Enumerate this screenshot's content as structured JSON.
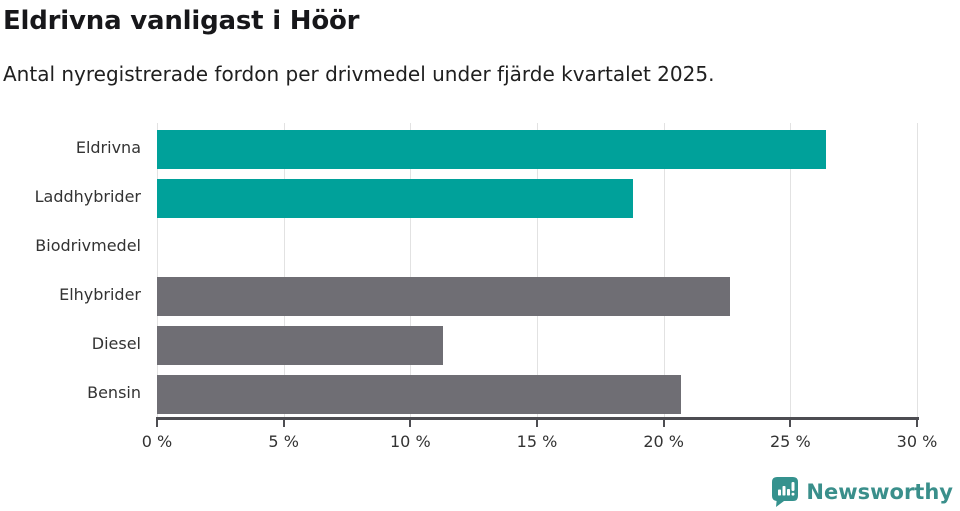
{
  "header": {
    "title": "Eldrivna vanligast i Höör",
    "subtitle": "Antal nyregistrerade fordon per drivmedel under fjärde kvartalet 2025."
  },
  "chart_data": {
    "type": "bar",
    "orientation": "horizontal",
    "title": "Eldrivna vanligast i Höör",
    "subtitle": "Antal nyregistrerade fordon per drivmedel under fjärde kvartalet 2025.",
    "categories": [
      "Eldrivna",
      "Laddhybrider",
      "Biodrivmedel",
      "Elhybrider",
      "Diesel",
      "Bensin"
    ],
    "values": [
      26.4,
      18.8,
      0,
      22.6,
      11.3,
      20.7
    ],
    "unit": "%",
    "xlim": [
      0,
      30
    ],
    "x_ticks": [
      0,
      5,
      10,
      15,
      20,
      25,
      30
    ],
    "x_tick_labels": [
      "0 %",
      "5 %",
      "10 %",
      "15 %",
      "20 %",
      "25 %",
      "30 %"
    ],
    "bar_colors": [
      "#00a19a",
      "#00a19a",
      "#00a19a",
      "#6f6e74",
      "#6f6e74",
      "#6f6e74"
    ],
    "grid": true,
    "legend": "none"
  },
  "footer": {
    "brand": "Newsworthy"
  },
  "colors": {
    "teal": "#00a19a",
    "gray": "#6f6e74",
    "axis": "#4d4d52",
    "gridline": "#e2e2e2",
    "logo_icon": "#35928e",
    "logo_text": "#3a8f8b"
  }
}
